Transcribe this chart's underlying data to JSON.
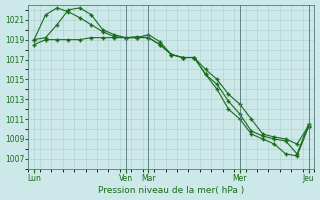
{
  "title": "",
  "xlabel": "Pression niveau de la mer( hPa )",
  "ylabel": "",
  "bg_color": "#cce8e8",
  "grid_color": "#aacccc",
  "line_color": "#1a6b1a",
  "marker_color": "#1a6b1a",
  "ylim": [
    1006.0,
    1022.5
  ],
  "yticks": [
    1007,
    1009,
    1011,
    1013,
    1015,
    1017,
    1019,
    1021
  ],
  "xtick_labels": [
    "Lun",
    "Ven",
    "Mar",
    "Mer",
    "Jeu"
  ],
  "xtick_positions": [
    0,
    8,
    10,
    18,
    24
  ],
  "vlines": [
    8,
    10,
    18,
    24
  ],
  "series1_x": [
    0,
    1,
    2,
    3,
    4,
    5,
    6,
    7,
    8,
    9,
    10,
    11,
    12,
    13,
    14,
    15,
    16,
    17,
    18,
    19,
    20,
    21,
    22,
    23,
    24
  ],
  "series1": [
    1019.0,
    1021.5,
    1022.2,
    1021.8,
    1021.2,
    1020.5,
    1019.8,
    1019.3,
    1019.2,
    1019.2,
    1019.5,
    1018.8,
    1017.5,
    1017.2,
    1017.2,
    1016.0,
    1015.0,
    1013.5,
    1012.5,
    1011.0,
    1009.5,
    1009.2,
    1009.0,
    1008.5,
    1010.3
  ],
  "series2_x": [
    0,
    1,
    2,
    3,
    4,
    5,
    6,
    7,
    8,
    9,
    10,
    11,
    12,
    13,
    14,
    15,
    16,
    17,
    18,
    19,
    20,
    21,
    22,
    23,
    24
  ],
  "series2": [
    1019.0,
    1019.2,
    1020.5,
    1022.0,
    1022.2,
    1021.5,
    1020.0,
    1019.5,
    1019.2,
    1019.2,
    1019.2,
    1018.5,
    1017.5,
    1017.2,
    1017.2,
    1015.5,
    1014.5,
    1012.8,
    1011.5,
    1009.8,
    1009.3,
    1009.0,
    1008.8,
    1007.5,
    1010.5
  ],
  "series3_x": [
    0,
    1,
    2,
    3,
    4,
    5,
    6,
    7,
    8,
    9,
    10,
    11,
    12,
    13,
    14,
    15,
    16,
    17,
    18,
    19,
    20,
    21,
    22,
    23,
    24
  ],
  "series3": [
    1018.5,
    1019.0,
    1019.0,
    1019.0,
    1019.0,
    1019.2,
    1019.2,
    1019.2,
    1019.2,
    1019.3,
    1019.2,
    1018.5,
    1017.5,
    1017.2,
    1017.2,
    1015.5,
    1014.0,
    1012.0,
    1011.0,
    1009.5,
    1009.0,
    1008.5,
    1007.5,
    1007.3,
    1010.2
  ],
  "n_x": 25,
  "xlim": [
    -0.5,
    24.5
  ]
}
